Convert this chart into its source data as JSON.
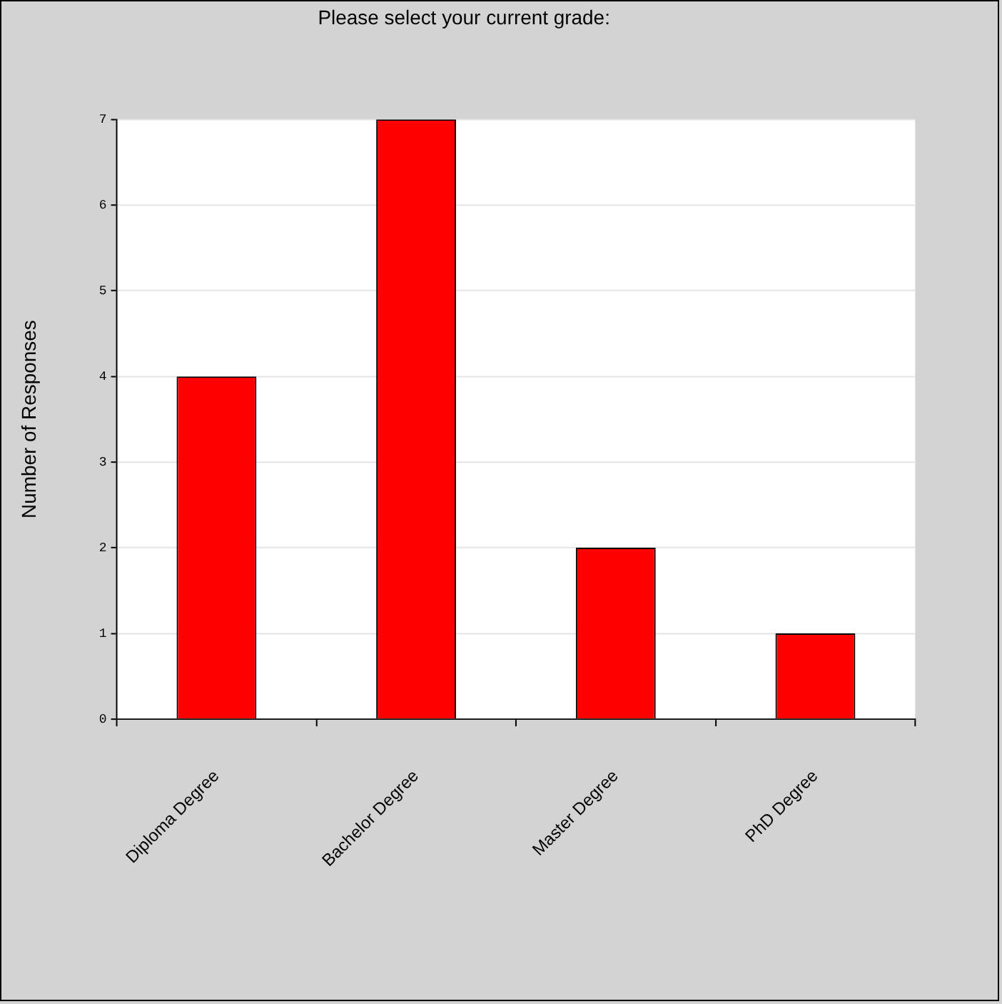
{
  "chart_data": {
    "type": "bar",
    "title": "Please select your current grade:",
    "ylabel": "Number of Responses",
    "categories": [
      "Diploma Degree",
      "Bachelor Degree",
      "Master Degree",
      "PhD Degree"
    ],
    "values": [
      4,
      7,
      2,
      1
    ],
    "color": "#ff0000",
    "ylim": [
      0,
      7
    ],
    "yticks": [
      0,
      1,
      2,
      3,
      4,
      5,
      6,
      7
    ],
    "grid": "y",
    "legend": false
  }
}
